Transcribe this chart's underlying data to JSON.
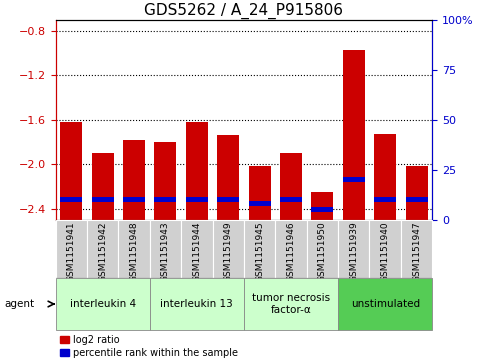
{
  "title": "GDS5262 / A_24_P915806",
  "samples": [
    "GSM1151941",
    "GSM1151942",
    "GSM1151948",
    "GSM1151943",
    "GSM1151944",
    "GSM1151949",
    "GSM1151945",
    "GSM1151946",
    "GSM1151950",
    "GSM1151939",
    "GSM1151940",
    "GSM1151947"
  ],
  "log2_ratio": [
    -1.62,
    -1.9,
    -1.78,
    -1.8,
    -1.62,
    -1.74,
    -2.02,
    -1.9,
    -2.25,
    -0.97,
    -1.73,
    -2.02
  ],
  "percentile": [
    10,
    10,
    10,
    10,
    10,
    10,
    8,
    10,
    5,
    20,
    10,
    10
  ],
  "groups": [
    {
      "label": "interleukin 4",
      "indices": [
        0,
        1,
        2
      ],
      "color": "#ccffcc"
    },
    {
      "label": "interleukin 13",
      "indices": [
        3,
        4,
        5
      ],
      "color": "#ccffcc"
    },
    {
      "label": "tumor necrosis\nfactor-α",
      "indices": [
        6,
        7,
        8
      ],
      "color": "#ccffcc"
    },
    {
      "label": "unstimulated",
      "indices": [
        9,
        10,
        11
      ],
      "color": "#55cc55"
    }
  ],
  "ylim_left": [
    -2.5,
    -0.7
  ],
  "ylim_right": [
    0,
    100
  ],
  "yticks_left": [
    -2.4,
    -2.0,
    -1.6,
    -1.2,
    -0.8
  ],
  "yticks_right": [
    0,
    25,
    50,
    75,
    100
  ],
  "bar_color_red": "#cc0000",
  "bar_color_blue": "#0000cc",
  "bar_width": 0.7,
  "grid_color": "#000000",
  "tick_label_color_left": "#cc0000",
  "tick_label_color_right": "#0000cc",
  "legend_red_label": "log2 ratio",
  "legend_blue_label": "percentile rank within the sample",
  "title_fontsize": 11,
  "tick_fontsize": 8,
  "sample_fontsize": 6.5,
  "group_fontsize": 7.5,
  "legend_fontsize": 7
}
